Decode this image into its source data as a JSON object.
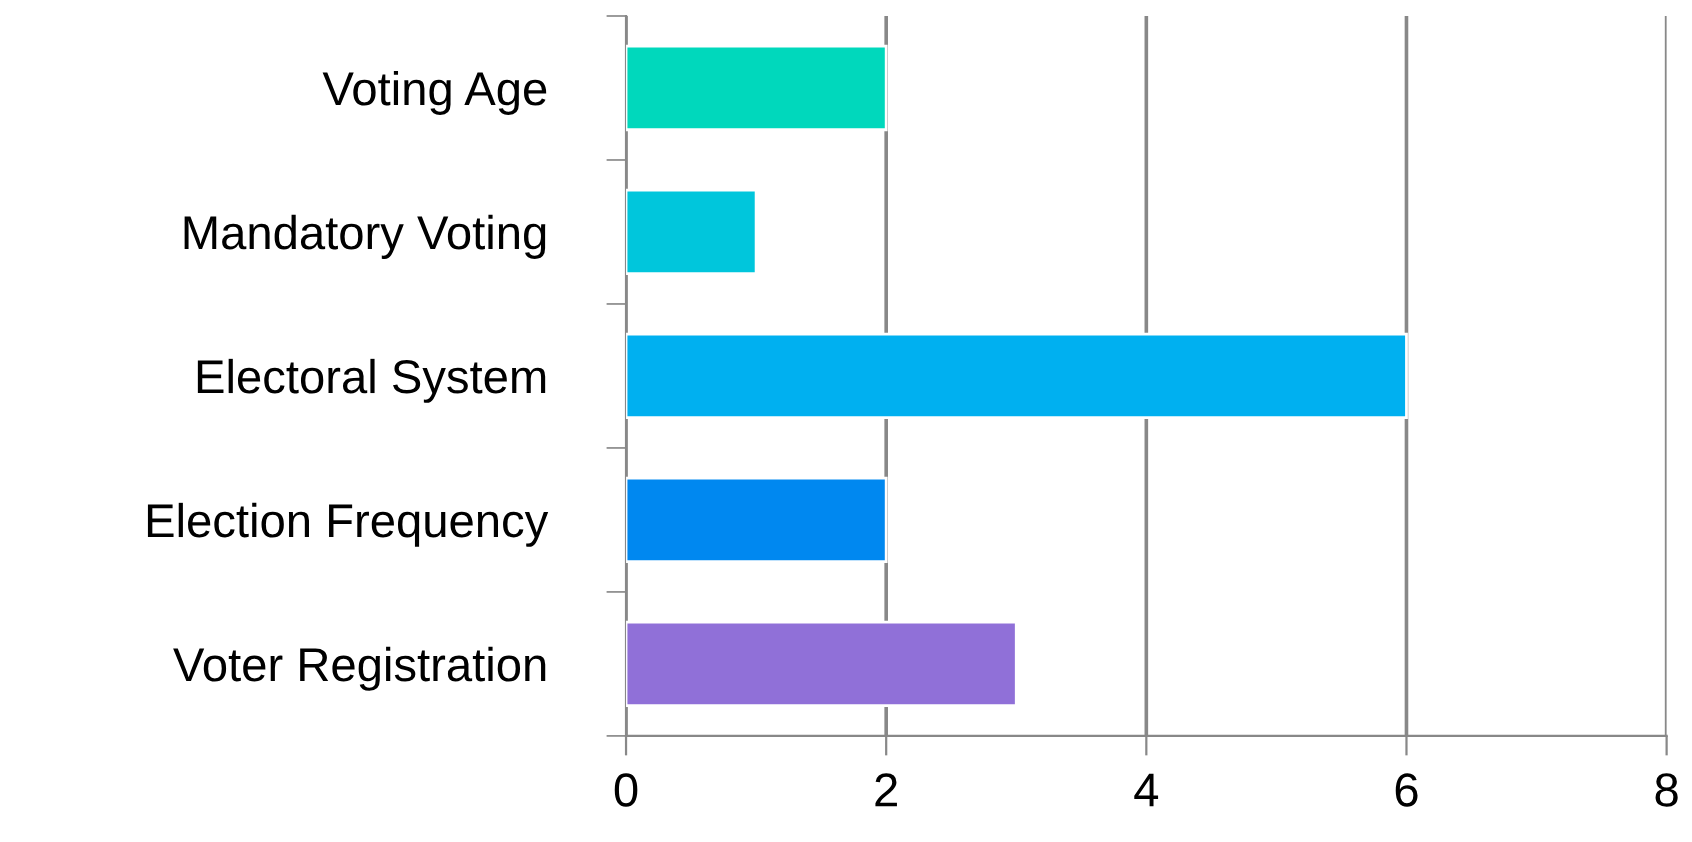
{
  "chart_data": {
    "type": "bar",
    "orientation": "horizontal",
    "categories": [
      "Voting Age",
      "Mandatory Voting",
      "Electoral System",
      "Election Frequency",
      "Voter Registration"
    ],
    "values": [
      2,
      1,
      6,
      2,
      3
    ],
    "colors": [
      "#00d8bc",
      "#00c6dc",
      "#00b0f0",
      "#0088f0",
      "#9070d8"
    ],
    "xlim": [
      0,
      8
    ],
    "xticks": [
      0,
      2,
      4,
      6,
      8
    ],
    "grid": "x",
    "legend": false
  }
}
